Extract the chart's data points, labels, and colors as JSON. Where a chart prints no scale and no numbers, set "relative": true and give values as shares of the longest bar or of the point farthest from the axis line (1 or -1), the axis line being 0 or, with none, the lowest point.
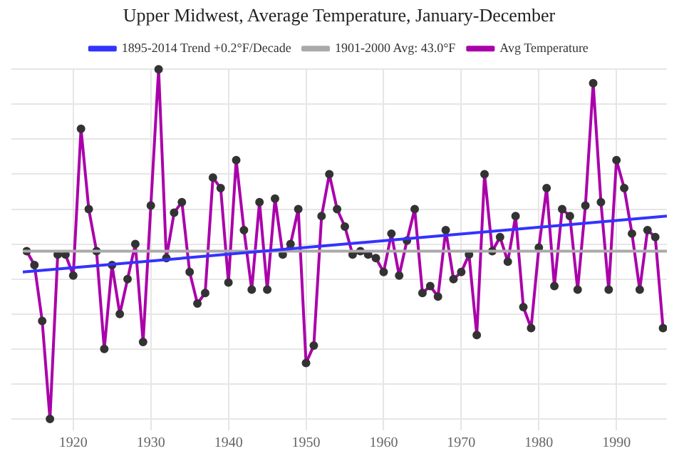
{
  "chart_data": {
    "type": "line",
    "title": "Upper Midwest, Average Temperature, January-December",
    "relative": true,
    "grid": true,
    "legend": "top",
    "xlim": [
      1913.5,
      1996.5
    ],
    "xticks": [
      1920,
      1930,
      1940,
      1950,
      1960,
      1970,
      1980,
      1990
    ],
    "series": [
      {
        "name": "1895-2014 Trend +0.2°F/Decade",
        "color": "#3333ff",
        "marker": "none",
        "x": [
          1913.5,
          1996.5
        ],
        "values": [
          0.42,
          0.58
        ]
      },
      {
        "name": "1901-2000 Avg: 43.0°F",
        "color": "#aaaaaa",
        "marker": "none",
        "x": [
          1913.5,
          1996.5
        ],
        "values": [
          0.48,
          0.48
        ]
      },
      {
        "name": "Avg Temperature",
        "color": "#aa00aa",
        "marker": "circle",
        "x": [
          1914,
          1915,
          1916,
          1917,
          1918,
          1919,
          1920,
          1921,
          1922,
          1923,
          1924,
          1925,
          1926,
          1927,
          1928,
          1929,
          1930,
          1931,
          1932,
          1933,
          1934,
          1935,
          1936,
          1937,
          1938,
          1939,
          1940,
          1941,
          1942,
          1943,
          1944,
          1945,
          1946,
          1947,
          1948,
          1949,
          1950,
          1951,
          1952,
          1953,
          1954,
          1955,
          1956,
          1957,
          1958,
          1959,
          1960,
          1961,
          1962,
          1963,
          1964,
          1965,
          1966,
          1967,
          1968,
          1969,
          1970,
          1971,
          1972,
          1973,
          1974,
          1975,
          1976,
          1977,
          1978,
          1979,
          1980,
          1981,
          1982,
          1983,
          1984,
          1985,
          1986,
          1987,
          1988,
          1989,
          1990,
          1991,
          1992,
          1993,
          1994,
          1995,
          1996
        ],
        "values": [
          0.48,
          0.44,
          0.28,
          0.0,
          0.47,
          0.47,
          0.41,
          0.83,
          0.6,
          0.48,
          0.2,
          0.44,
          0.3,
          0.4,
          0.5,
          0.22,
          0.61,
          1.0,
          0.46,
          0.59,
          0.62,
          0.42,
          0.33,
          0.36,
          0.69,
          0.66,
          0.39,
          0.74,
          0.54,
          0.37,
          0.62,
          0.37,
          0.63,
          0.47,
          0.5,
          0.6,
          0.16,
          0.21,
          0.58,
          0.7,
          0.6,
          0.55,
          0.47,
          0.48,
          0.47,
          0.46,
          0.42,
          0.53,
          0.41,
          0.51,
          0.6,
          0.36,
          0.38,
          0.35,
          0.54,
          0.4,
          0.42,
          0.47,
          0.24,
          0.7,
          0.48,
          0.52,
          0.45,
          0.58,
          0.32,
          0.26,
          0.49,
          0.66,
          0.38,
          0.6,
          0.58,
          0.37,
          0.61,
          0.96,
          0.62,
          0.37,
          0.74,
          0.66,
          0.53,
          0.37,
          0.54,
          0.52,
          0.26
        ]
      }
    ]
  }
}
